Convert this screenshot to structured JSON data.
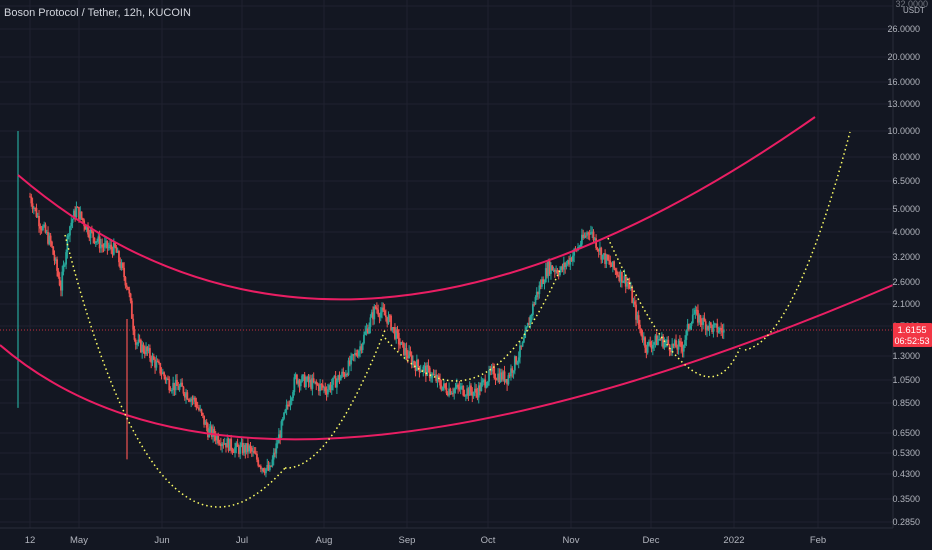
{
  "header": {
    "title": "Boson Protocol / Tether, 12h, KUCOIN"
  },
  "price_badge": {
    "value": "1.6155",
    "countdown": "06:52:53",
    "color": "#f23645"
  },
  "colors": {
    "background": "#131722",
    "grid": "#1f2230",
    "up": "#26a69a",
    "down": "#ef5350",
    "channel": "#e91e63",
    "cup_curve": "#ffff66"
  },
  "chart_data": {
    "type": "candlestick",
    "symbol": "BOSON/USDT",
    "interval": "12h",
    "exchange": "KUCOIN",
    "y_scale": "log",
    "y_unit": "USDT",
    "ylim": [
      0.27,
      31
    ],
    "y_ticks": [
      "32.0000",
      "26.0000",
      "20.0000",
      "16.0000",
      "13.0000",
      "10.0000",
      "8.0000",
      "6.5000",
      "5.0000",
      "4.0000",
      "3.2000",
      "2.6000",
      "2.1000",
      "1.7000",
      "1.3000",
      "1.0500",
      "0.8500",
      "0.6500",
      "0.5300",
      "0.4300",
      "0.3500",
      "0.2850"
    ],
    "x_ticks": [
      "12",
      "May",
      "Jun",
      "Jul",
      "Aug",
      "Sep",
      "Oct",
      "Nov",
      "Dec",
      "2022",
      "Feb"
    ],
    "last_price": 1.6155,
    "price_path": [
      [
        "2021-04-12",
        5.5
      ],
      [
        "2021-04-16",
        4.3
      ],
      [
        "2021-04-20",
        3.6
      ],
      [
        "2021-04-24",
        2.4
      ],
      [
        "2021-04-27",
        4.1
      ],
      [
        "2021-04-30",
        4.9
      ],
      [
        "2021-05-05",
        4.0
      ],
      [
        "2021-05-10",
        3.5
      ],
      [
        "2021-05-15",
        3.4
      ],
      [
        "2021-05-20",
        2.4
      ],
      [
        "2021-05-23",
        1.45
      ],
      [
        "2021-05-27",
        1.35
      ],
      [
        "2021-06-01",
        1.15
      ],
      [
        "2021-06-05",
        1.0
      ],
      [
        "2021-06-10",
        0.95
      ],
      [
        "2021-06-15",
        0.85
      ],
      [
        "2021-06-20",
        0.65
      ],
      [
        "2021-06-25",
        0.6
      ],
      [
        "2021-07-01",
        0.55
      ],
      [
        "2021-07-06",
        0.55
      ],
      [
        "2021-07-11",
        0.47
      ],
      [
        "2021-07-14",
        0.45
      ],
      [
        "2021-07-19",
        0.7
      ],
      [
        "2021-07-24",
        1.05
      ],
      [
        "2021-07-30",
        1.0
      ],
      [
        "2021-08-05",
        0.95
      ],
      [
        "2021-08-12",
        1.1
      ],
      [
        "2021-08-18",
        1.4
      ],
      [
        "2021-08-24",
        2.0
      ],
      [
        "2021-08-29",
        1.8
      ],
      [
        "2021-09-03",
        1.4
      ],
      [
        "2021-09-08",
        1.2
      ],
      [
        "2021-09-14",
        1.1
      ],
      [
        "2021-09-20",
        0.95
      ],
      [
        "2021-09-26",
        0.95
      ],
      [
        "2021-10-02",
        0.92
      ],
      [
        "2021-10-08",
        1.1
      ],
      [
        "2021-10-14",
        1.05
      ],
      [
        "2021-10-20",
        1.4
      ],
      [
        "2021-10-25",
        2.2
      ],
      [
        "2021-10-30",
        2.9
      ],
      [
        "2021-11-04",
        2.8
      ],
      [
        "2021-11-10",
        3.4
      ],
      [
        "2021-11-15",
        4.1
      ],
      [
        "2021-11-20",
        3.2
      ],
      [
        "2021-11-25",
        2.8
      ],
      [
        "2021-11-30",
        2.5
      ],
      [
        "2021-12-04",
        1.7
      ],
      [
        "2021-12-07",
        1.4
      ],
      [
        "2021-12-12",
        1.5
      ],
      [
        "2021-12-17",
        1.4
      ],
      [
        "2021-12-21",
        1.4
      ],
      [
        "2021-12-25",
        1.9
      ],
      [
        "2021-12-29",
        1.75
      ],
      [
        "2022-01-02",
        1.65
      ],
      [
        "2022-01-06",
        1.6155
      ]
    ],
    "annotations": [
      {
        "type": "channel-upper",
        "color": "#e91e63"
      },
      {
        "type": "channel-lower",
        "color": "#e91e63"
      },
      {
        "type": "cup-curve-dotted",
        "color": "#ffff66",
        "count": 5
      }
    ]
  }
}
